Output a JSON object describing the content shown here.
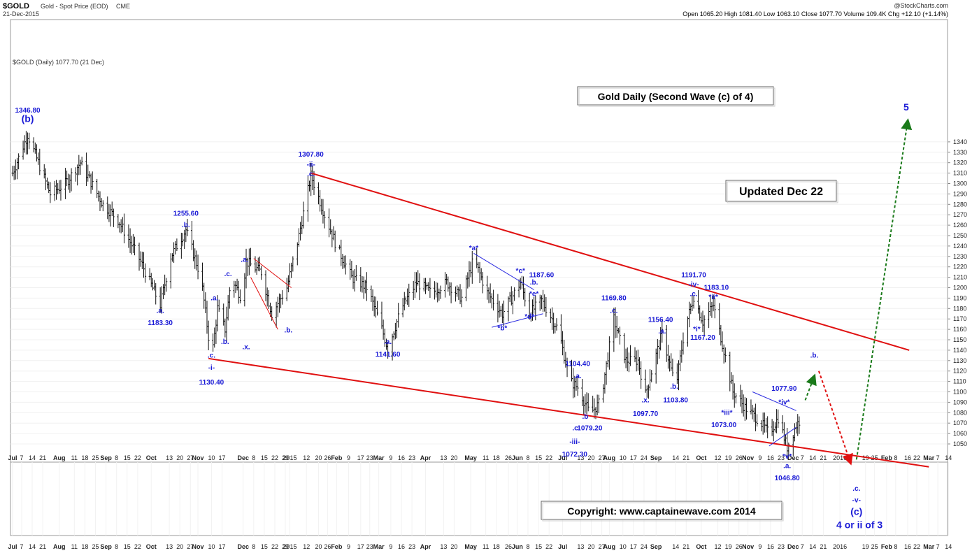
{
  "header": {
    "symbol": "$GOLD",
    "description": "Gold - Spot Price (EOD)",
    "exchange": "CME",
    "date": "21-Dec-2015",
    "copyright": "@StockCharts.com",
    "ohlc_line": "Open 1065.20  High 1081.40  Low 1063.10  Close 1077.70  Volume 109.4K  Chg +12.10 (+1.14%)",
    "legend": "$GOLD (Daily) 1077.70 (21 Dec)"
  },
  "boxes": {
    "title": "Gold Daily (Second Wave (c) of 4)",
    "updated": "Updated Dec 22",
    "copyright": "Copyright:    www.captainewave.com 2014"
  },
  "x_axis_labels": [
    {
      "t": "Jul",
      "d": 0
    },
    {
      "t": "7",
      "d": 6
    },
    {
      "t": "14",
      "d": 13
    },
    {
      "t": "21",
      "d": 20
    },
    {
      "t": "Aug",
      "d": 31
    },
    {
      "t": "11",
      "d": 41
    },
    {
      "t": "18",
      "d": 48
    },
    {
      "t": "25",
      "d": 55
    },
    {
      "t": "Sep",
      "d": 62
    },
    {
      "t": "8",
      "d": 69
    },
    {
      "t": "15",
      "d": 76
    },
    {
      "t": "22",
      "d": 83
    },
    {
      "t": "Oct",
      "d": 92
    },
    {
      "t": "13",
      "d": 104
    },
    {
      "t": "20",
      "d": 111
    },
    {
      "t": "27",
      "d": 118
    },
    {
      "t": "Nov",
      "d": 123
    },
    {
      "t": "10",
      "d": 132
    },
    {
      "t": "17",
      "d": 139
    },
    {
      "t": "Dec",
      "d": 153
    },
    {
      "t": "8",
      "d": 160
    },
    {
      "t": "15",
      "d": 167
    },
    {
      "t": "22",
      "d": 174
    },
    {
      "t": "29",
      "d": 181
    },
    {
      "t": "2015",
      "d": 184
    },
    {
      "t": "12",
      "d": 195
    },
    {
      "t": "20",
      "d": 203
    },
    {
      "t": "26",
      "d": 209
    },
    {
      "t": "Feb",
      "d": 215
    },
    {
      "t": "9",
      "d": 223
    },
    {
      "t": "17",
      "d": 231
    },
    {
      "t": "23",
      "d": 237
    },
    {
      "t": "Mar",
      "d": 243
    },
    {
      "t": "9",
      "d": 251
    },
    {
      "t": "16",
      "d": 258
    },
    {
      "t": "23",
      "d": 265
    },
    {
      "t": "Apr",
      "d": 274
    },
    {
      "t": "13",
      "d": 286
    },
    {
      "t": "20",
      "d": 293
    },
    {
      "t": "May",
      "d": 304
    },
    {
      "t": "11",
      "d": 314
    },
    {
      "t": "18",
      "d": 321
    },
    {
      "t": "26",
      "d": 329
    },
    {
      "t": "Jun",
      "d": 335
    },
    {
      "t": "8",
      "d": 342
    },
    {
      "t": "15",
      "d": 349
    },
    {
      "t": "22",
      "d": 356
    },
    {
      "t": "Jul",
      "d": 365
    },
    {
      "t": "13",
      "d": 377
    },
    {
      "t": "20",
      "d": 384
    },
    {
      "t": "27",
      "d": 391
    },
    {
      "t": "Aug",
      "d": 396
    },
    {
      "t": "10",
      "d": 405
    },
    {
      "t": "17",
      "d": 412
    },
    {
      "t": "24",
      "d": 419
    },
    {
      "t": "Sep",
      "d": 427
    },
    {
      "t": "14",
      "d": 440
    },
    {
      "t": "21",
      "d": 447
    },
    {
      "t": "Oct",
      "d": 457
    },
    {
      "t": "12",
      "d": 468
    },
    {
      "t": "19",
      "d": 475
    },
    {
      "t": "26",
      "d": 482
    },
    {
      "t": "Nov",
      "d": 488
    },
    {
      "t": "9",
      "d": 496
    },
    {
      "t": "16",
      "d": 503
    },
    {
      "t": "23",
      "d": 510
    },
    {
      "t": "Dec",
      "d": 518
    },
    {
      "t": "7",
      "d": 524
    },
    {
      "t": "14",
      "d": 531
    },
    {
      "t": "21",
      "d": 538
    },
    {
      "t": "2016",
      "d": 549
    },
    {
      "t": "19",
      "d": 566
    },
    {
      "t": "25",
      "d": 572
    },
    {
      "t": "Feb",
      "d": 580
    },
    {
      "t": "8",
      "d": 586
    },
    {
      "t": "16",
      "d": 594
    },
    {
      "t": "22",
      "d": 600
    },
    {
      "t": "Mar",
      "d": 608
    },
    {
      "t": "7",
      "d": 614
    },
    {
      "t": "14",
      "d": 621
    }
  ],
  "annotations": [
    {
      "t": "1346.80",
      "d": 10,
      "p": 1368,
      "c": "#1a1ad6"
    },
    {
      "t": "(b)",
      "d": 10,
      "p": 1359,
      "c": "#1a1ad6",
      "big": true
    },
    {
      "t": "1255.60",
      "d": 115,
      "p": 1269,
      "c": "#1a1ad6"
    },
    {
      "t": ".b.",
      "d": 115,
      "p": 1258,
      "c": "#1a1ad6"
    },
    {
      "t": ".a.",
      "d": 98,
      "p": 1176,
      "c": "#1a1ad6"
    },
    {
      "t": "1183.30",
      "d": 98,
      "p": 1164,
      "c": "#1a1ad6"
    },
    {
      "t": ".a.",
      "d": 134,
      "p": 1188,
      "c": "#1a1ad6"
    },
    {
      "t": ".c.",
      "d": 143,
      "p": 1211,
      "c": "#1a1ad6"
    },
    {
      "t": ".a.",
      "d": 154,
      "p": 1225,
      "c": "#1a1ad6"
    },
    {
      "t": ".b.",
      "d": 141,
      "p": 1146,
      "c": "#1a1ad6"
    },
    {
      "t": ".x.",
      "d": 155,
      "p": 1141,
      "c": "#1a1ad6"
    },
    {
      "t": ".b.",
      "d": 183,
      "p": 1157,
      "c": "#1a1ad6"
    },
    {
      "t": ".c.",
      "d": 132,
      "p": 1133,
      "c": "#1a1ad6"
    },
    {
      "t": "-i-",
      "d": 132,
      "p": 1121,
      "c": "#1a1ad6"
    },
    {
      "t": "1130.40",
      "d": 132,
      "p": 1107,
      "c": "#1a1ad6"
    },
    {
      "t": "1307.80",
      "d": 198,
      "p": 1326,
      "c": "#1a1ad6"
    },
    {
      "t": "-ii-",
      "d": 198,
      "p": 1316,
      "c": "#1a1ad6"
    },
    {
      "t": ".c.",
      "d": 198,
      "p": 1307,
      "c": "#1a1ad6"
    },
    {
      "t": ".a.",
      "d": 249,
      "p": 1146,
      "c": "#1a1ad6"
    },
    {
      "t": "1141.60",
      "d": 249,
      "p": 1134,
      "c": "#1a1ad6"
    },
    {
      "t": "*a*",
      "d": 306,
      "p": 1236,
      "c": "#1a1ad6"
    },
    {
      "t": "*c*",
      "d": 337,
      "p": 1214,
      "c": "#1a1ad6"
    },
    {
      "t": "1187.60",
      "d": 351,
      "p": 1210,
      "c": "#1a1ad6"
    },
    {
      "t": ".b.",
      "d": 346,
      "p": 1203,
      "c": "#1a1ad6"
    },
    {
      "t": "*e*",
      "d": 346,
      "p": 1192,
      "c": "#1a1ad6"
    },
    {
      "t": "*b*",
      "d": 325,
      "p": 1159,
      "c": "#1a1ad6"
    },
    {
      "t": "*d*",
      "d": 343,
      "p": 1170,
      "c": "#1a1ad6"
    },
    {
      "t": "1104.40",
      "d": 375,
      "p": 1125,
      "c": "#1a1ad6"
    },
    {
      "t": ".a.",
      "d": 375,
      "p": 1113,
      "c": "#1a1ad6"
    },
    {
      "t": ".b",
      "d": 380,
      "p": 1074,
      "c": "#1a1ad6"
    },
    {
      "t": ".c.",
      "d": 374,
      "p": 1063,
      "c": "#1a1ad6"
    },
    {
      "t": "1079.20",
      "d": 383,
      "p": 1063,
      "c": "#1a1ad6"
    },
    {
      "t": "-iii-",
      "d": 373,
      "p": 1050,
      "c": "#1a1ad6"
    },
    {
      "t": "1072.30",
      "d": 373,
      "p": 1038,
      "c": "#1a1ad6"
    },
    {
      "t": "1169.80",
      "d": 399,
      "p": 1188,
      "c": "#1a1ad6"
    },
    {
      "t": ".c.",
      "d": 399,
      "p": 1176,
      "c": "#1a1ad6"
    },
    {
      "t": ".x.",
      "d": 420,
      "p": 1090,
      "c": "#1a1ad6"
    },
    {
      "t": "1097.70",
      "d": 420,
      "p": 1077,
      "c": "#1a1ad6"
    },
    {
      "t": "1156.40",
      "d": 430,
      "p": 1167,
      "c": "#1a1ad6"
    },
    {
      "t": ".a.",
      "d": 431,
      "p": 1156,
      "c": "#1a1ad6"
    },
    {
      "t": ".b.",
      "d": 439,
      "p": 1103,
      "c": "#1a1ad6"
    },
    {
      "t": "1103.80",
      "d": 440,
      "p": 1090,
      "c": "#1a1ad6"
    },
    {
      "t": "1191.70",
      "d": 452,
      "p": 1210,
      "c": "#1a1ad6"
    },
    {
      "t": "-iv-",
      "d": 452,
      "p": 1201,
      "c": "#1a1ad6"
    },
    {
      "t": ".c.",
      "d": 452,
      "p": 1192,
      "c": "#1a1ad6"
    },
    {
      "t": "1183.10",
      "d": 467,
      "p": 1198,
      "c": "#1a1ad6"
    },
    {
      "t": "*ii*",
      "d": 465,
      "p": 1189,
      "c": "#1a1ad6"
    },
    {
      "t": "*i*",
      "d": 454,
      "p": 1158,
      "c": "#1a1ad6"
    },
    {
      "t": "1167.20",
      "d": 458,
      "p": 1150,
      "c": "#1a1ad6"
    },
    {
      "t": "*iii*",
      "d": 474,
      "p": 1078,
      "c": "#1a1ad6"
    },
    {
      "t": "1073.00",
      "d": 472,
      "p": 1066,
      "c": "#1a1ad6"
    },
    {
      "t": "1077.90",
      "d": 512,
      "p": 1101,
      "c": "#1a1ad6"
    },
    {
      "t": "*iv*",
      "d": 512,
      "p": 1088,
      "c": "#1a1ad6"
    },
    {
      "t": "*v*",
      "d": 514,
      "p": 1036,
      "c": "#1a1ad6"
    },
    {
      "t": ".a.",
      "d": 514,
      "p": 1027,
      "c": "#1a1ad6"
    },
    {
      "t": "1046.80",
      "d": 514,
      "p": 1015,
      "c": "#1a1ad6"
    },
    {
      "t": ".b.",
      "d": 532,
      "p": 1133,
      "c": "#1a1ad6"
    },
    {
      "t": ".c.",
      "d": 560,
      "p": 1005,
      "c": "#1a1ad6"
    },
    {
      "t": "-v-",
      "d": 560,
      "p": 994,
      "c": "#1a1ad6"
    },
    {
      "t": "(c)",
      "d": 560,
      "p": 982,
      "c": "#1a1ad6",
      "big": true
    },
    {
      "t": "4 or ii of 3",
      "d": 562,
      "p": 969,
      "c": "#1a1ad6",
      "big": true
    },
    {
      "t": "5",
      "d": 593,
      "p": 1370,
      "c": "#1a1ad6",
      "big": true
    }
  ],
  "chart_data": {
    "type": "ohlc",
    "title": "$GOLD Gold - Spot Price (EOD) CME",
    "legend": [
      "$GOLD (Daily) 1077.70 (21 Dec)"
    ],
    "price_axis": {
      "min": 1040,
      "max": 1350,
      "ticks": [
        1050,
        1060,
        1070,
        1080,
        1090,
        1100,
        1110,
        1120,
        1130,
        1140,
        1150,
        1160,
        1170,
        1180,
        1190,
        1200,
        1210,
        1220,
        1230,
        1240,
        1250,
        1260,
        1270,
        1280,
        1290,
        1300,
        1310,
        1320,
        1330,
        1340
      ],
      "position": "right"
    },
    "date_range": [
      "Jul 2014",
      "Mar 2016"
    ],
    "last_bar": {
      "open": 1065.2,
      "high": 1081.4,
      "low": 1063.1,
      "close": 1077.7,
      "volume": "109.4K",
      "change": "+12.10 (+1.14%)"
    },
    "price_path_anchors": [
      {
        "d": 0,
        "p": 1310
      },
      {
        "d": 10,
        "p": 1346.8
      },
      {
        "d": 25,
        "p": 1290
      },
      {
        "d": 35,
        "p": 1300
      },
      {
        "d": 45,
        "p": 1320
      },
      {
        "d": 60,
        "p": 1280
      },
      {
        "d": 70,
        "p": 1265
      },
      {
        "d": 85,
        "p": 1225
      },
      {
        "d": 98,
        "p": 1183.3
      },
      {
        "d": 105,
        "p": 1230
      },
      {
        "d": 115,
        "p": 1255.6
      },
      {
        "d": 125,
        "p": 1210
      },
      {
        "d": 132,
        "p": 1130.4
      },
      {
        "d": 136,
        "p": 1180
      },
      {
        "d": 141,
        "p": 1160
      },
      {
        "d": 145,
        "p": 1210
      },
      {
        "d": 152,
        "p": 1190
      },
      {
        "d": 155,
        "p": 1225
      },
      {
        "d": 165,
        "p": 1215
      },
      {
        "d": 172,
        "p": 1175
      },
      {
        "d": 182,
        "p": 1200
      },
      {
        "d": 190,
        "p": 1250
      },
      {
        "d": 198,
        "p": 1307.8
      },
      {
        "d": 207,
        "p": 1270
      },
      {
        "d": 215,
        "p": 1240
      },
      {
        "d": 225,
        "p": 1210
      },
      {
        "d": 235,
        "p": 1200
      },
      {
        "d": 243,
        "p": 1170
      },
      {
        "d": 249,
        "p": 1141.6
      },
      {
        "d": 258,
        "p": 1180
      },
      {
        "d": 268,
        "p": 1205
      },
      {
        "d": 278,
        "p": 1195
      },
      {
        "d": 288,
        "p": 1205
      },
      {
        "d": 298,
        "p": 1190
      },
      {
        "d": 306,
        "p": 1228
      },
      {
        "d": 315,
        "p": 1195
      },
      {
        "d": 325,
        "p": 1175
      },
      {
        "d": 337,
        "p": 1205
      },
      {
        "d": 343,
        "p": 1175
      },
      {
        "d": 351,
        "p": 1187.6
      },
      {
        "d": 362,
        "p": 1160
      },
      {
        "d": 370,
        "p": 1110
      },
      {
        "d": 375,
        "p": 1104.4
      },
      {
        "d": 383,
        "p": 1079.2
      },
      {
        "d": 390,
        "p": 1090
      },
      {
        "d": 399,
        "p": 1169.8
      },
      {
        "d": 407,
        "p": 1130
      },
      {
        "d": 415,
        "p": 1130
      },
      {
        "d": 420,
        "p": 1097.7
      },
      {
        "d": 426,
        "p": 1130
      },
      {
        "d": 431,
        "p": 1156.4
      },
      {
        "d": 440,
        "p": 1103.8
      },
      {
        "d": 446,
        "p": 1160
      },
      {
        "d": 452,
        "p": 1191.7
      },
      {
        "d": 458,
        "p": 1167.2
      },
      {
        "d": 465,
        "p": 1183.1
      },
      {
        "d": 472,
        "p": 1140
      },
      {
        "d": 478,
        "p": 1100
      },
      {
        "d": 486,
        "p": 1085
      },
      {
        "d": 495,
        "p": 1073
      },
      {
        "d": 502,
        "p": 1060
      },
      {
        "d": 508,
        "p": 1075
      },
      {
        "d": 514,
        "p": 1046.8
      },
      {
        "d": 520,
        "p": 1068
      },
      {
        "d": 525,
        "p": 1077.7
      }
    ],
    "trendlines": [
      {
        "color": "#e01010",
        "width": 2,
        "from": {
          "d": 198,
          "p": 1310
        },
        "to": {
          "d": 595,
          "p": 1140
        }
      },
      {
        "color": "#e01010",
        "width": 2,
        "from": {
          "d": 130,
          "p": 1132
        },
        "to": {
          "d": 608,
          "p": 1028
        }
      },
      {
        "color": "#e01010",
        "width": 1,
        "from": {
          "d": 160,
          "p": 1228
        },
        "to": {
          "d": 185,
          "p": 1200
        }
      },
      {
        "color": "#e01010",
        "width": 1,
        "from": {
          "d": 158,
          "p": 1210
        },
        "to": {
          "d": 176,
          "p": 1160
        }
      },
      {
        "color": "#2a2ae0",
        "width": 1,
        "from": {
          "d": 306,
          "p": 1233
        },
        "to": {
          "d": 346,
          "p": 1198
        }
      },
      {
        "color": "#2a2ae0",
        "width": 1,
        "from": {
          "d": 318,
          "p": 1162
        },
        "to": {
          "d": 352,
          "p": 1175
        }
      },
      {
        "color": "#2a2ae0",
        "width": 1,
        "from": {
          "d": 491,
          "p": 1100
        },
        "to": {
          "d": 520,
          "p": 1082
        }
      },
      {
        "color": "#2a2ae0",
        "width": 1,
        "from": {
          "d": 502,
          "p": 1048
        },
        "to": {
          "d": 520,
          "p": 1066
        }
      }
    ],
    "projections": [
      {
        "color": "#1a7a1a",
        "from": {
          "d": 526,
          "p": 1092
        },
        "to": {
          "d": 532,
          "p": 1115
        }
      },
      {
        "color": "#e01010",
        "from": {
          "d": 535,
          "p": 1120
        },
        "to": {
          "d": 556,
          "p": 1032
        }
      },
      {
        "color": "#1a7a1a",
        "from": {
          "d": 560,
          "p": 1035
        },
        "to": {
          "d": 594,
          "p": 1360
        }
      }
    ]
  }
}
